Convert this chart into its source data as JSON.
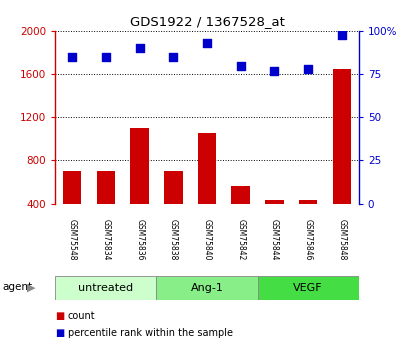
{
  "title": "GDS1922 / 1367528_at",
  "samples": [
    "GSM75548",
    "GSM75834",
    "GSM75836",
    "GSM75838",
    "GSM75840",
    "GSM75842",
    "GSM75844",
    "GSM75846",
    "GSM75848"
  ],
  "counts": [
    700,
    700,
    1100,
    700,
    1050,
    565,
    430,
    430,
    1650
  ],
  "percentiles": [
    85,
    85,
    90,
    85,
    93,
    80,
    77,
    78,
    98
  ],
  "ylim_left": [
    400,
    2000
  ],
  "ylim_right": [
    0,
    100
  ],
  "yticks_left": [
    400,
    800,
    1200,
    1600,
    2000
  ],
  "yticks_right": [
    0,
    25,
    50,
    75,
    100
  ],
  "yticklabels_right": [
    "0",
    "25",
    "50",
    "75",
    "100%"
  ],
  "groups": [
    {
      "label": "untreated",
      "indices": [
        0,
        1,
        2
      ],
      "color": "#ccffcc"
    },
    {
      "label": "Ang-1",
      "indices": [
        3,
        4,
        5
      ],
      "color": "#88ee88"
    },
    {
      "label": "VEGF",
      "indices": [
        6,
        7,
        8
      ],
      "color": "#44dd44"
    }
  ],
  "bar_color": "#cc0000",
  "scatter_color": "#0000cc",
  "left_axis_color": "#cc0000",
  "right_axis_color": "#0000cc",
  "grid_color": "#000000",
  "sample_box_color": "#cccccc",
  "bg_color": "#ffffff",
  "legend_count_color": "#cc0000",
  "legend_pct_color": "#0000cc"
}
